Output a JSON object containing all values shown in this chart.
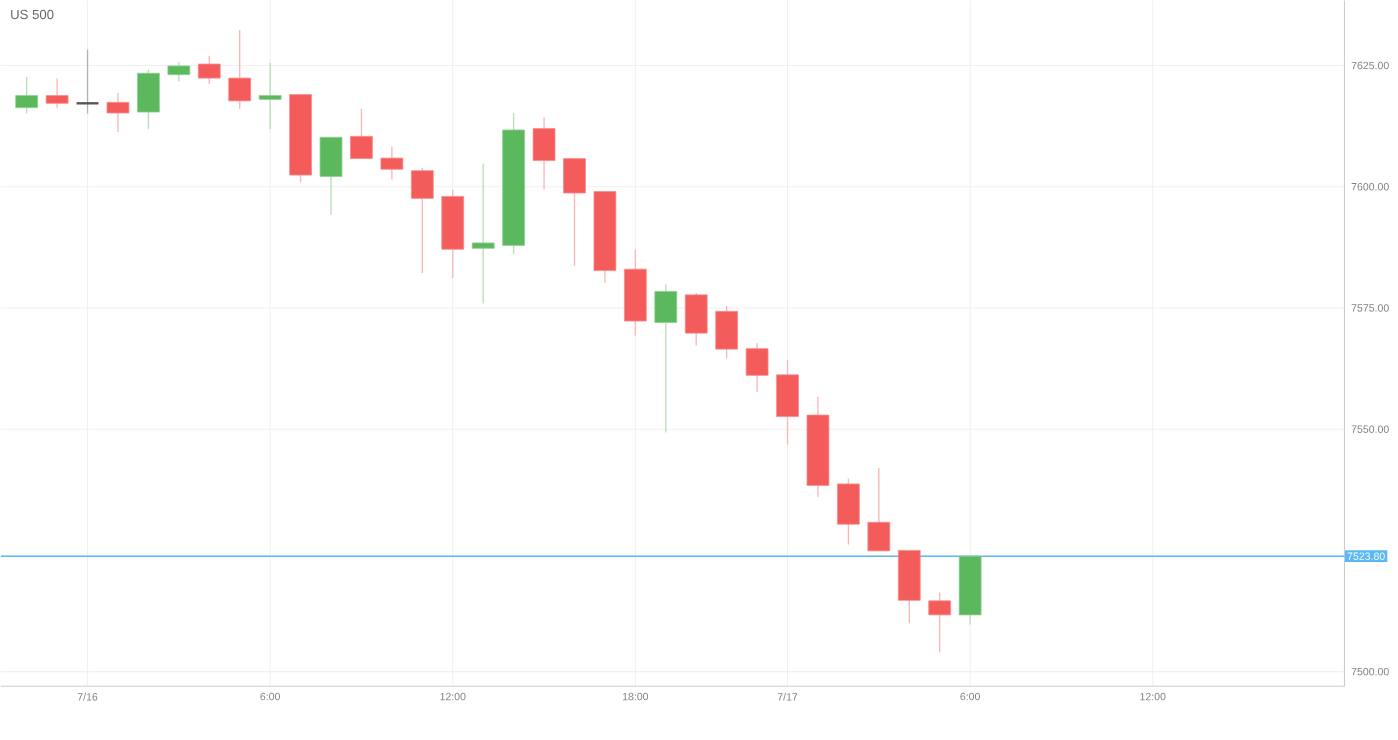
{
  "chart_data": {
    "type": "candlestick",
    "title": "US 500",
    "categories": [
      null,
      null,
      "7/16",
      null,
      null,
      null,
      null,
      null,
      "6:00",
      null,
      null,
      null,
      null,
      null,
      "12:00",
      null,
      null,
      null,
      null,
      null,
      "18:00",
      null,
      null,
      null,
      null,
      "7/17",
      null,
      null,
      null,
      null,
      null,
      "6:00",
      null,
      null,
      null,
      null,
      null,
      "12:00",
      null,
      null,
      null,
      null,
      null,
      null
    ],
    "ohlc": [
      [
        7616.3,
        7622.6,
        7615.1,
        7618.8
      ],
      [
        7618.8,
        7622.3,
        7616.3,
        7617.2
      ],
      [
        7617.2,
        7628.3,
        7615.1,
        7617.2
      ],
      [
        7617.4,
        7619.3,
        7611.3,
        7615.2
      ],
      [
        7615.4,
        7624.2,
        7611.9,
        7623.4
      ],
      [
        7623.1,
        7625.7,
        7621.7,
        7624.9
      ],
      [
        7625.3,
        7627.0,
        7621.2,
        7622.4
      ],
      [
        7622.4,
        7632.3,
        7616.1,
        7617.7
      ],
      [
        7618.0,
        7625.5,
        7611.9,
        7618.8
      ],
      [
        7619.0,
        7619.0,
        7600.9,
        7602.4
      ],
      [
        7602.1,
        7610.2,
        7594.2,
        7610.2
      ],
      [
        7610.4,
        7616.1,
        7605.8,
        7605.8
      ],
      [
        7605.9,
        7608.3,
        7601.5,
        7603.6
      ],
      [
        7603.3,
        7603.9,
        7582.2,
        7597.6
      ],
      [
        7598.0,
        7599.4,
        7581.2,
        7587.1
      ],
      [
        7587.3,
        7604.8,
        7575.9,
        7588.4
      ],
      [
        7587.9,
        7615.2,
        7586.1,
        7611.7
      ],
      [
        7612.0,
        7614.3,
        7599.4,
        7605.4
      ],
      [
        7605.8,
        7605.8,
        7583.7,
        7598.7
      ],
      [
        7599.0,
        7599.0,
        7580.2,
        7582.7
      ],
      [
        7583.0,
        7587.1,
        7569.3,
        7572.3
      ],
      [
        7572.0,
        7579.9,
        7549.3,
        7578.4
      ],
      [
        7577.7,
        7578.1,
        7567.2,
        7569.8
      ],
      [
        7574.3,
        7575.4,
        7564.6,
        7566.5
      ],
      [
        7566.6,
        7567.7,
        7557.6,
        7561.1
      ],
      [
        7561.2,
        7564.3,
        7546.8,
        7552.6
      ],
      [
        7552.9,
        7556.7,
        7536.0,
        7538.4
      ],
      [
        7538.7,
        7539.8,
        7526.2,
        7530.4
      ],
      [
        7530.8,
        7542.0,
        7524.9,
        7524.9
      ],
      [
        7525.0,
        7525.0,
        7510.0,
        7514.7
      ],
      [
        7514.6,
        7516.3,
        7504.0,
        7511.7
      ],
      [
        7511.7,
        7523.8,
        7509.7,
        7523.8
      ],
      null,
      null,
      null,
      null,
      null,
      null,
      null,
      null,
      null,
      null,
      null,
      null
    ],
    "colors": [
      "#5cb85c",
      "#f45b5b",
      "#555555",
      "#f45b5b",
      "#5cb85c",
      "#5cb85c",
      "#f45b5b",
      "#f45b5b",
      "#5cb85c",
      "#f45b5b",
      "#5cb85c",
      "#f45b5b",
      "#f45b5b",
      "#f45b5b",
      "#f45b5b",
      "#5cb85c",
      "#5cb85c",
      "#f45b5b",
      "#f45b5b",
      "#f45b5b",
      "#f45b5b",
      "#5cb85c",
      "#f45b5b",
      "#f45b5b",
      "#f45b5b",
      "#f45b5b",
      "#f45b5b",
      "#f45b5b",
      "#f45b5b",
      "#f45b5b",
      "#f45b5b",
      "#5cb85c",
      null,
      null,
      null,
      null,
      null,
      null,
      null,
      null,
      null,
      null,
      null,
      null
    ],
    "ylim": [
      7497.0,
      7638.4
    ],
    "yticks": [
      {
        "value": 7500,
        "label": "7500.00"
      },
      {
        "value": 7550,
        "label": "7550.00"
      },
      {
        "value": 7575,
        "label": "7575.00"
      },
      {
        "value": 7600,
        "label": "7600.00"
      },
      {
        "value": 7625,
        "label": "7625.00"
      }
    ],
    "ref_lines": [
      {
        "axis": "y",
        "value": 7523.8,
        "label": "7523.80",
        "color": "#5bb8f5"
      }
    ],
    "grid": true
  }
}
